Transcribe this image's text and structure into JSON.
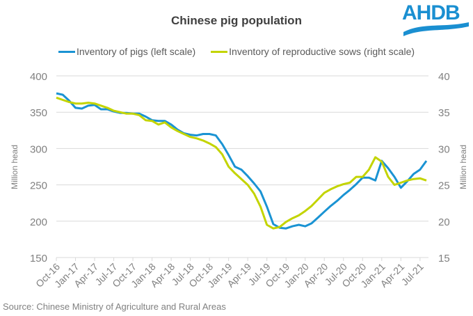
{
  "header": {
    "title": "Chinese pig population",
    "logo_text": "AHDB"
  },
  "footer": {
    "source": "Source: Chinese Ministry of Agriculture and Rural Areas"
  },
  "colors": {
    "pigs": "#1a93d3",
    "sows": "#c3d400",
    "grid": "#d9d9d9",
    "logo": "#1a8fd1"
  },
  "chart_data": {
    "type": "line",
    "title": "Chinese pig population",
    "ylabel_left": "Million head",
    "ylabel_right": "Million head",
    "ylim_left": [
      150,
      400
    ],
    "ylim_right": [
      15,
      40
    ],
    "yticks_left": [
      150,
      200,
      250,
      300,
      350,
      400
    ],
    "yticks_right": [
      15,
      20,
      25,
      30,
      35,
      40
    ],
    "grid": true,
    "legend_position": "top",
    "x_tick_labels": [
      "Oct-16",
      "Jan-17",
      "Apr-17",
      "Jul-17",
      "Oct-17",
      "Jan-18",
      "Apr-18",
      "Jul-18",
      "Oct-18",
      "Jan-19",
      "Apr-19",
      "Jul-19",
      "Oct-19",
      "Jan-20",
      "Apr-20",
      "Jul-20",
      "Oct-20",
      "Jan-21",
      "Apr-21",
      "Jul-21"
    ],
    "x": [
      "Oct-16",
      "Nov-16",
      "Dec-16",
      "Jan-17",
      "Feb-17",
      "Mar-17",
      "Apr-17",
      "May-17",
      "Jun-17",
      "Jul-17",
      "Aug-17",
      "Sep-17",
      "Oct-17",
      "Nov-17",
      "Dec-17",
      "Jan-18",
      "Feb-18",
      "Mar-18",
      "Apr-18",
      "May-18",
      "Jun-18",
      "Jul-18",
      "Aug-18",
      "Sep-18",
      "Oct-18",
      "Nov-18",
      "Dec-18",
      "Jan-19",
      "Feb-19",
      "Mar-19",
      "Apr-19",
      "May-19",
      "Jun-19",
      "Jul-19",
      "Aug-19",
      "Sep-19",
      "Oct-19",
      "Nov-19",
      "Dec-19",
      "Jan-20",
      "Feb-20",
      "Mar-20",
      "Apr-20",
      "May-20",
      "Jun-20",
      "Jul-20",
      "Aug-20",
      "Sep-20",
      "Oct-20",
      "Nov-20",
      "Dec-20",
      "Jan-21",
      "Feb-21",
      "Mar-21",
      "Apr-21",
      "May-21",
      "Jun-21",
      "Jul-21",
      "Aug-21"
    ],
    "series": [
      {
        "name": "Inventory of pigs (left scale)",
        "axis": "left",
        "values": [
          376,
          374,
          366,
          356,
          355,
          359,
          360,
          354,
          354,
          351,
          349,
          349,
          348,
          348,
          344,
          339,
          338,
          338,
          333,
          326,
          321,
          319,
          318,
          320,
          320,
          318,
          306,
          291,
          275,
          271,
          262,
          252,
          241,
          220,
          196,
          191,
          190,
          193,
          195,
          193,
          197,
          205,
          213,
          221,
          228,
          236,
          243,
          251,
          260,
          260,
          256,
          283,
          273,
          261,
          246,
          255,
          265,
          271,
          283
        ]
      },
      {
        "name": "Inventory of reproductive sows (right scale)",
        "axis": "right",
        "values": [
          37.0,
          36.7,
          36.4,
          36.2,
          36.2,
          36.3,
          36.2,
          35.9,
          35.6,
          35.2,
          35.0,
          34.8,
          34.8,
          34.6,
          33.9,
          33.8,
          33.3,
          33.6,
          32.9,
          32.4,
          32.0,
          31.6,
          31.4,
          31.1,
          30.7,
          30.2,
          29.2,
          27.5,
          26.6,
          25.8,
          25.0,
          23.8,
          22.0,
          19.5,
          19.0,
          19.2,
          19.9,
          20.4,
          20.8,
          21.4,
          22.1,
          23.0,
          23.9,
          24.4,
          24.8,
          25.1,
          25.3,
          26.1,
          26.1,
          27.1,
          28.8,
          28.2,
          26.1,
          25.0,
          25.3,
          25.6,
          25.8,
          25.9,
          25.6
        ]
      }
    ]
  }
}
